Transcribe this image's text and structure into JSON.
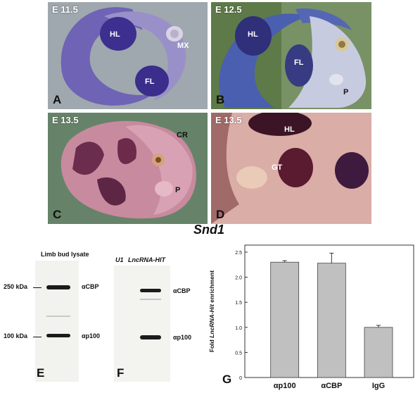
{
  "panels": {
    "A": {
      "stage": "E 11.5",
      "letter": "A",
      "labels": [
        "HL",
        "MX",
        "FL"
      ]
    },
    "B": {
      "stage": "E 12.5",
      "letter": "B",
      "labels": [
        "HL",
        "FL",
        "P"
      ]
    },
    "C": {
      "stage": "E 13.5",
      "letter": "C",
      "labels": [
        "CR",
        "P"
      ]
    },
    "D": {
      "stage": "E 13.5",
      "letter": "D",
      "labels": [
        "HL",
        "GT"
      ]
    }
  },
  "gene_label": "Snd1",
  "blot_E": {
    "title": "Limb bud lysate",
    "markers": [
      "250 kDa",
      "100 kDa"
    ],
    "bands": [
      "αCBP",
      "αp100"
    ],
    "letter": "E"
  },
  "blot_F": {
    "lane_labels": [
      "U1",
      "LncRNA-HIT"
    ],
    "bands": [
      "αCBP",
      "αp100"
    ],
    "letter": "F"
  },
  "colors": {
    "bar": "#c0c0c0",
    "stain": "#3b2a8c"
  },
  "chart_data": {
    "type": "bar",
    "categories": [
      "αp100",
      "αCBP",
      "IgG"
    ],
    "values": [
      2.3,
      2.28,
      1.0
    ],
    "errors": [
      0.03,
      0.2,
      0.04
    ],
    "ylabel_prefix": "Fold ",
    "ylabel_italic": "LncRNA-Hit",
    "ylabel_suffix": " enrichment",
    "ylim": [
      0,
      2.5
    ],
    "yticks": [
      "0",
      "0.5",
      "1.0",
      "1.5",
      "2.0",
      "2.5"
    ],
    "letter": "G"
  }
}
